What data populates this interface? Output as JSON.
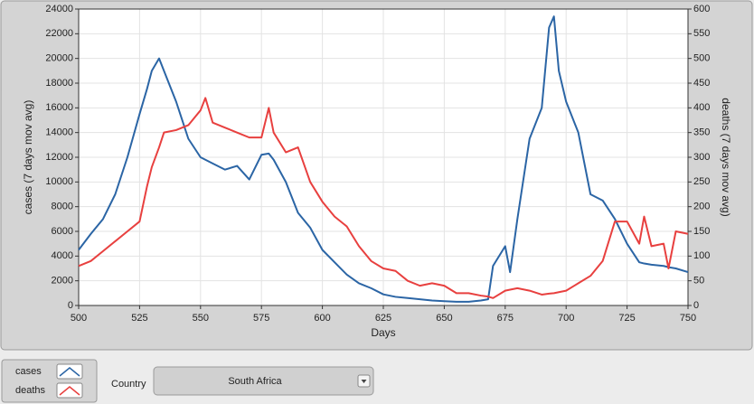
{
  "chart_data": {
    "type": "line",
    "x_label": "Days",
    "y_label": "cases  (7 days mov avg)",
    "y2_label": "deaths  (7 days mov avg)",
    "x": [
      500,
      505,
      510,
      515,
      520,
      525,
      528,
      530,
      533,
      535,
      540,
      545,
      550,
      552,
      555,
      560,
      565,
      570,
      575,
      578,
      580,
      585,
      590,
      595,
      600,
      605,
      610,
      615,
      620,
      625,
      630,
      635,
      640,
      645,
      650,
      655,
      660,
      665,
      668,
      670,
      675,
      677,
      680,
      685,
      690,
      693,
      695,
      697,
      700,
      705,
      710,
      715,
      720,
      725,
      730,
      732,
      735,
      740,
      742,
      745,
      750
    ],
    "series": [
      {
        "name": "cases",
        "color": "#2b65a5",
        "values": [
          4500,
          5800,
          7000,
          9000,
          12000,
          15500,
          17500,
          19000,
          20000,
          19000,
          16500,
          13500,
          12000,
          11800,
          11500,
          11000,
          11300,
          10200,
          12200,
          12300,
          11800,
          10000,
          7500,
          6300,
          4500,
          3500,
          2500,
          1800,
          1400,
          900,
          700,
          600,
          500,
          400,
          350,
          300,
          300,
          400,
          500,
          3200,
          4800,
          2700,
          7000,
          13500,
          16000,
          22500,
          23400,
          19000,
          16500,
          14000,
          9000,
          8500,
          7000,
          5000,
          3500,
          3400,
          3300,
          3200,
          3100,
          3000,
          2700
        ]
      },
      {
        "name": "deaths",
        "color": "#e8403f",
        "axis": "y2",
        "values": [
          80,
          90,
          110,
          130,
          150,
          170,
          240,
          280,
          320,
          350,
          355,
          365,
          395,
          420,
          370,
          360,
          350,
          340,
          340,
          400,
          350,
          310,
          320,
          250,
          210,
          180,
          160,
          120,
          90,
          75,
          70,
          50,
          40,
          45,
          40,
          25,
          25,
          20,
          18,
          15,
          30,
          32,
          35,
          30,
          22,
          24,
          25,
          27,
          30,
          45,
          60,
          90,
          170,
          170,
          125,
          180,
          120,
          125,
          75,
          150,
          145
        ]
      }
    ],
    "xlim": [
      500,
      750
    ],
    "xticks": [
      500,
      525,
      550,
      575,
      600,
      625,
      650,
      675,
      700,
      725,
      750
    ],
    "ylim": [
      0,
      24000
    ],
    "yticks": [
      0,
      2000,
      4000,
      6000,
      8000,
      10000,
      12000,
      14000,
      16000,
      18000,
      20000,
      22000,
      24000
    ],
    "y2lim": [
      0,
      600
    ],
    "y2ticks": [
      0,
      50,
      100,
      150,
      200,
      250,
      300,
      350,
      400,
      450,
      500,
      550,
      600
    ],
    "grid": true
  },
  "controls": {
    "country_label": "Country",
    "country_value": "South Africa"
  }
}
